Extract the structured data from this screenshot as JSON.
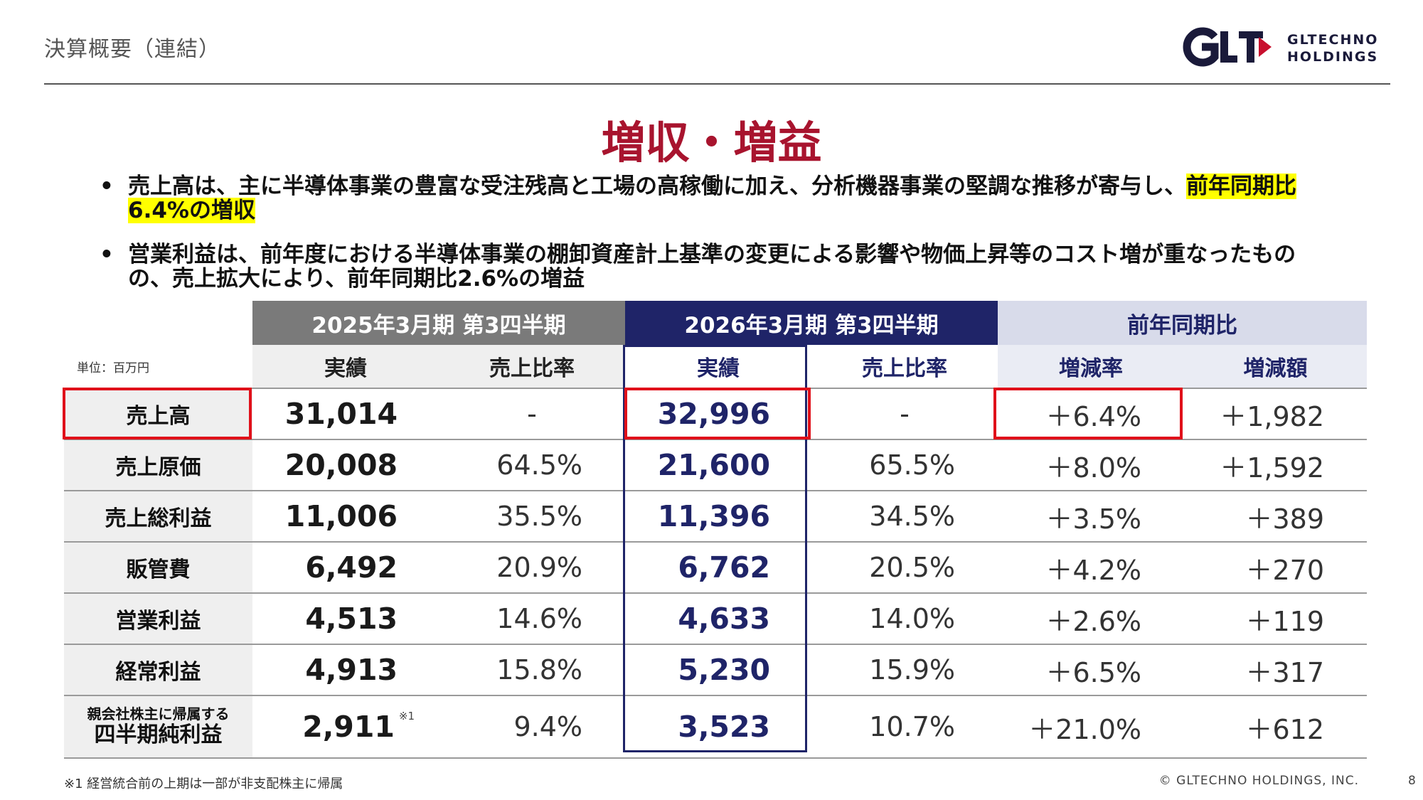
{
  "header": {
    "title": "決算概要（連結）",
    "logo_line1": "GLTECHNO",
    "logo_line2": "HOLDINGS",
    "logo_mark": "GLT"
  },
  "headline": "増収・増益",
  "bullets": [
    {
      "text_plain": "売上高は、主に半導体事業の豊富な受注残高と工場の高稼働に加え、分析機器事業の堅調な推移が寄与し、",
      "text_highlight": "前年同期比6.4%の増収"
    },
    {
      "text_plain": "営業利益は、前年度における半導体事業の棚卸資産計上基準の変更による影響や物価上昇等のコスト増が重なったものの、売上拡大により、前年同期比2.6%の増益",
      "text_highlight": ""
    }
  ],
  "table": {
    "unit_label": "単位：百万円",
    "groups": {
      "prev": "2025年3月期 第3四半期",
      "cur": "2026年3月期 第3四半期",
      "cmp": "前年同期比"
    },
    "subheaders": {
      "prev_actual": "実績",
      "prev_ratio": "売上比率",
      "cur_actual": "実績",
      "cur_ratio": "売上比率",
      "rate": "増減率",
      "amount": "増減額"
    },
    "rows": [
      {
        "label": "売上高",
        "prev": "31,014",
        "prev_ratio": "-",
        "cur": "32,996",
        "cur_ratio": "-",
        "rate": "＋6.4%",
        "amount": "＋1,982"
      },
      {
        "label": "売上原価",
        "prev": "20,008",
        "prev_ratio": "64.5%",
        "cur": "21,600",
        "cur_ratio": "65.5%",
        "rate": "＋8.0%",
        "amount": "＋1,592"
      },
      {
        "label": "売上総利益",
        "prev": "11,006",
        "prev_ratio": "35.5%",
        "cur": "11,396",
        "cur_ratio": "34.5%",
        "rate": "＋3.5%",
        "amount": "＋389"
      },
      {
        "label": "販管費",
        "prev": "6,492",
        "prev_ratio": "20.9%",
        "cur": "6,762",
        "cur_ratio": "20.5%",
        "rate": "＋4.2%",
        "amount": "＋270"
      },
      {
        "label": "営業利益",
        "prev": "4,513",
        "prev_ratio": "14.6%",
        "cur": "4,633",
        "cur_ratio": "14.0%",
        "rate": "＋2.6%",
        "amount": "＋119"
      },
      {
        "label": "経常利益",
        "prev": "4,913",
        "prev_ratio": "15.8%",
        "cur": "5,230",
        "cur_ratio": "15.9%",
        "rate": "＋6.5%",
        "amount": "＋317"
      },
      {
        "label_small": "親会社株主に帰属する",
        "label_large": "四半期純利益",
        "prev": "2,911",
        "prev_note": "※1",
        "prev_ratio": "9.4%",
        "cur": "3,523",
        "cur_ratio": "10.7%",
        "rate": "＋21.0%",
        "amount": "＋612"
      }
    ]
  },
  "footnote": "※1 経営統合前の上期は一部が非支配株主に帰属",
  "copyright": "© GLTECHNO HOLDINGS, INC.",
  "page_number": "8",
  "colors": {
    "headline": "#a8142e",
    "navy": "#1f2468",
    "gray_header": "#7a7a7a",
    "compare_header": "#d8dbea",
    "highlight": "#ffff00",
    "red_box": "#e0101a",
    "logo_red": "#c8102e"
  }
}
